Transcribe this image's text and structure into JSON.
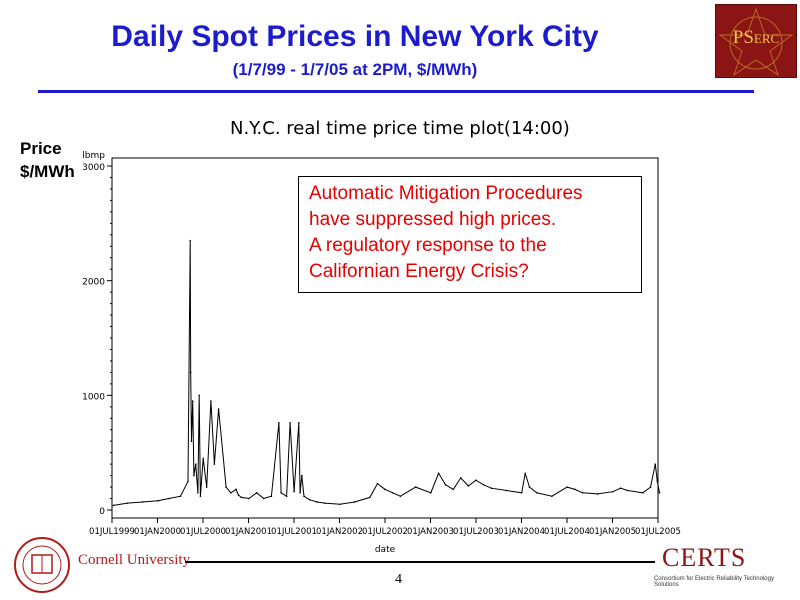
{
  "slide": {
    "title": "Daily Spot Prices in New York City",
    "subtitle": "(1/7/99 - 1/7/05 at 2PM, $/MWh)",
    "price_label_line1": "Price",
    "price_label_line2": "$/MWh",
    "annotation": [
      "Automatic Mitigation Procedures",
      "have suppressed high prices.",
      "A regulatory response to the",
      "Californian Energy Crisis?"
    ],
    "page_number": "4",
    "cornell_name": "Cornell University",
    "certs_logo": "CERTS",
    "certs_tagline": "Consortium for Electric Reliability Technology Solutions",
    "pserc_logo_main": "PS",
    "pserc_logo_small": "ERC",
    "colors": {
      "title": "#1c1ccc",
      "annotation": "#e60000",
      "pserc_bg": "#8b1414",
      "cornell": "#b31b1b"
    }
  },
  "chart_data": {
    "type": "line",
    "title": "N.Y.C. real time price time plot(14:00)",
    "ylabel": "lbmp",
    "xlabel": "date",
    "ylim": [
      0,
      3000
    ],
    "yticks": [
      0,
      1000,
      2000,
      3000
    ],
    "xticks": [
      "01JUL1999",
      "01JAN2000",
      "01JUL2000",
      "01JAN2001",
      "01JUL2001",
      "01JAN2002",
      "01JUL2002",
      "01JAN2003",
      "01JUL2003",
      "01JAN2004",
      "01JUL2004",
      "01JAN2005",
      "01JUL2005"
    ],
    "series": [
      {
        "name": "",
        "x": [
          "1999-07-07",
          "1999-09-01",
          "1999-11-01",
          "2000-01-01",
          "2000-02-15",
          "2000-04-01",
          "2000-05-01",
          "2000-05-10",
          "2000-05-12",
          "2000-05-15",
          "2000-05-20",
          "2000-05-25",
          "2000-06-01",
          "2000-06-10",
          "2000-06-15",
          "2000-06-20",
          "2000-07-01",
          "2000-07-15",
          "2000-08-01",
          "2000-08-15",
          "2000-09-01",
          "2000-10-01",
          "2000-10-20",
          "2000-11-10",
          "2000-11-20",
          "2000-12-01",
          "2001-01-01",
          "2001-02-01",
          "2001-03-01",
          "2001-04-01",
          "2001-05-01",
          "2001-05-10",
          "2001-06-01",
          "2001-06-15",
          "2001-07-01",
          "2001-07-20",
          "2001-07-25",
          "2001-08-01",
          "2001-08-10",
          "2001-09-01",
          "2001-10-01",
          "2001-11-01",
          "2002-01-01",
          "2002-03-01",
          "2002-05-01",
          "2002-06-01",
          "2002-07-01",
          "2002-08-01",
          "2002-09-01",
          "2002-11-01",
          "2003-01-01",
          "2003-02-01",
          "2003-03-01",
          "2003-04-01",
          "2003-05-01",
          "2003-06-01",
          "2003-07-01",
          "2003-08-01",
          "2003-09-01",
          "2003-11-01",
          "2004-01-01",
          "2004-01-15",
          "2004-02-01",
          "2004-03-01",
          "2004-05-01",
          "2004-07-01",
          "2004-08-01",
          "2004-09-01",
          "2004-11-01",
          "2005-01-01",
          "2005-02-01",
          "2005-03-01",
          "2005-05-01",
          "2005-06-01",
          "2005-06-20",
          "2005-06-28",
          "2005-07-07"
        ],
        "values": [
          40,
          60,
          70,
          80,
          100,
          120,
          250,
          2350,
          1200,
          600,
          950,
          300,
          400,
          150,
          1000,
          120,
          450,
          200,
          950,
          400,
          880,
          200,
          150,
          180,
          130,
          110,
          100,
          150,
          100,
          120,
          760,
          150,
          120,
          760,
          160,
          760,
          150,
          300,
          120,
          90,
          70,
          60,
          50,
          70,
          110,
          230,
          180,
          150,
          120,
          200,
          150,
          320,
          220,
          180,
          280,
          210,
          260,
          220,
          190,
          170,
          150,
          320,
          200,
          150,
          120,
          200,
          180,
          150,
          140,
          160,
          190,
          170,
          150,
          200,
          400,
          250,
          150
        ]
      }
    ]
  }
}
